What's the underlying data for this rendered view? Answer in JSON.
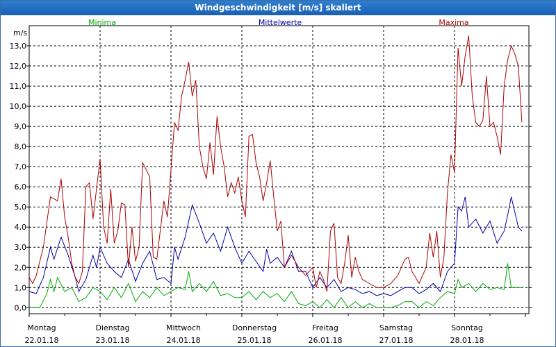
{
  "window": {
    "title": "Windgeschwindigkeit [m/s] skaliert"
  },
  "chart_data": {
    "type": "line",
    "title": "Windgeschwindigkeit [m/s] skaliert",
    "ylabel": "m/s",
    "ylim": [
      -0.3,
      14.0
    ],
    "yticks": [
      "0,0",
      "1,0",
      "2,0",
      "3,0",
      "4,0",
      "5,0",
      "6,0",
      "7,0",
      "8,0",
      "9,0",
      "10,0",
      "11,0",
      "12,0",
      "13,0"
    ],
    "day_names": [
      "Montag",
      "Dienstag",
      "Mittwoch",
      "Donnerstag",
      "Freitag",
      "Samstag",
      "Sonntag"
    ],
    "day_dates": [
      "22.01.18",
      "23.01.18",
      "24.01.18",
      "25.01.18",
      "26.01.18",
      "27.01.18",
      "28.01.18"
    ],
    "x_range_days": [
      0,
      7
    ],
    "grid": true,
    "series": [
      {
        "name": "Minima",
        "color": "#00aa00",
        "points": [
          [
            0,
            0
          ],
          [
            0.15,
            0
          ],
          [
            0.25,
            0.7
          ],
          [
            0.3,
            1.4
          ],
          [
            0.35,
            0.8
          ],
          [
            0.4,
            1.5
          ],
          [
            0.5,
            0.8
          ],
          [
            0.6,
            1.0
          ],
          [
            0.7,
            0.3
          ],
          [
            0.8,
            0.5
          ],
          [
            0.9,
            1.0
          ],
          [
            1.0,
            0.8
          ],
          [
            1.1,
            0.4
          ],
          [
            1.2,
            1.0
          ],
          [
            1.3,
            0.5
          ],
          [
            1.4,
            1.2
          ],
          [
            1.5,
            0.3
          ],
          [
            1.6,
            0.8
          ],
          [
            1.7,
            0.5
          ],
          [
            1.8,
            1.0
          ],
          [
            1.9,
            0.6
          ],
          [
            2.0,
            0.8
          ],
          [
            2.1,
            1.0
          ],
          [
            2.2,
            0.9
          ],
          [
            2.25,
            1.8
          ],
          [
            2.3,
            0.8
          ],
          [
            2.4,
            1.2
          ],
          [
            2.5,
            0.8
          ],
          [
            2.6,
            1.3
          ],
          [
            2.7,
            0.6
          ],
          [
            2.8,
            0.7
          ],
          [
            2.9,
            0.5
          ],
          [
            3.0,
            0.5
          ],
          [
            3.1,
            0.8
          ],
          [
            3.2,
            0.4
          ],
          [
            3.3,
            0.8
          ],
          [
            3.4,
            0.5
          ],
          [
            3.5,
            0.7
          ],
          [
            3.6,
            0.3
          ],
          [
            3.7,
            0.8
          ],
          [
            3.8,
            0.2
          ],
          [
            3.9,
            0.1
          ],
          [
            4.0,
            0.3
          ],
          [
            4.1,
            0
          ],
          [
            4.2,
            0.4
          ],
          [
            4.3,
            0
          ],
          [
            4.4,
            0.5
          ],
          [
            4.5,
            0
          ],
          [
            4.6,
            0.3
          ],
          [
            4.7,
            0
          ],
          [
            4.8,
            0.2
          ],
          [
            4.9,
            0
          ],
          [
            5.0,
            0
          ],
          [
            5.1,
            0
          ],
          [
            5.2,
            0.1
          ],
          [
            5.3,
            0.3
          ],
          [
            5.4,
            0.3
          ],
          [
            5.5,
            0
          ],
          [
            5.6,
            0.3
          ],
          [
            5.7,
            0.1
          ],
          [
            5.8,
            0.5
          ],
          [
            5.9,
            0.8
          ],
          [
            6.0,
            0.7
          ],
          [
            6.05,
            1.4
          ],
          [
            6.1,
            1.0
          ],
          [
            6.2,
            1.2
          ],
          [
            6.3,
            0.8
          ],
          [
            6.4,
            1.2
          ],
          [
            6.5,
            0.9
          ],
          [
            6.6,
            1.0
          ],
          [
            6.7,
            0.9
          ],
          [
            6.75,
            2.2
          ],
          [
            6.8,
            1.0
          ],
          [
            6.9,
            1.0
          ],
          [
            6.95,
            1.0
          ]
        ]
      },
      {
        "name": "Mittelwerte",
        "color": "#0000aa",
        "points": [
          [
            0,
            0.8
          ],
          [
            0.1,
            0.7
          ],
          [
            0.2,
            1.5
          ],
          [
            0.3,
            3.0
          ],
          [
            0.35,
            2.4
          ],
          [
            0.45,
            3.5
          ],
          [
            0.55,
            2.6
          ],
          [
            0.65,
            1.5
          ],
          [
            0.7,
            0.8
          ],
          [
            0.8,
            1.4
          ],
          [
            0.9,
            2.6
          ],
          [
            0.95,
            2.0
          ],
          [
            1.0,
            3.0
          ],
          [
            1.1,
            2.2
          ],
          [
            1.2,
            1.8
          ],
          [
            1.3,
            1.5
          ],
          [
            1.4,
            2.4
          ],
          [
            1.5,
            1.3
          ],
          [
            1.6,
            2.2
          ],
          [
            1.7,
            2.8
          ],
          [
            1.8,
            1.4
          ],
          [
            1.9,
            1.5
          ],
          [
            2.0,
            1.2
          ],
          [
            2.05,
            3.0
          ],
          [
            2.1,
            2.4
          ],
          [
            2.2,
            3.5
          ],
          [
            2.3,
            5.1
          ],
          [
            2.4,
            4.2
          ],
          [
            2.5,
            3.2
          ],
          [
            2.6,
            3.7
          ],
          [
            2.7,
            2.8
          ],
          [
            2.8,
            4.0
          ],
          [
            2.9,
            3.0
          ],
          [
            3.0,
            2.2
          ],
          [
            3.1,
            2.8
          ],
          [
            3.2,
            2.3
          ],
          [
            3.3,
            1.8
          ],
          [
            3.35,
            2.9
          ],
          [
            3.4,
            2.2
          ],
          [
            3.5,
            2.5
          ],
          [
            3.6,
            2.0
          ],
          [
            3.7,
            2.8
          ],
          [
            3.8,
            1.8
          ],
          [
            3.9,
            1.8
          ],
          [
            4.0,
            1.0
          ],
          [
            4.1,
            1.5
          ],
          [
            4.2,
            1.0
          ],
          [
            4.3,
            1.4
          ],
          [
            4.4,
            0.8
          ],
          [
            4.5,
            1.0
          ],
          [
            4.6,
            0.9
          ],
          [
            4.7,
            0.7
          ],
          [
            4.8,
            0.8
          ],
          [
            4.9,
            0.6
          ],
          [
            5.0,
            0.7
          ],
          [
            5.1,
            0.6
          ],
          [
            5.2,
            0.8
          ],
          [
            5.3,
            1.0
          ],
          [
            5.4,
            1.0
          ],
          [
            5.5,
            0.7
          ],
          [
            5.6,
            0.9
          ],
          [
            5.7,
            1.2
          ],
          [
            5.8,
            0.8
          ],
          [
            5.9,
            1.8
          ],
          [
            6.0,
            2.2
          ],
          [
            6.05,
            5.0
          ],
          [
            6.1,
            4.8
          ],
          [
            6.15,
            5.5
          ],
          [
            6.2,
            4.0
          ],
          [
            6.3,
            4.4
          ],
          [
            6.4,
            3.7
          ],
          [
            6.5,
            4.3
          ],
          [
            6.6,
            3.2
          ],
          [
            6.7,
            3.8
          ],
          [
            6.75,
            4.6
          ],
          [
            6.8,
            5.5
          ],
          [
            6.9,
            4.0
          ],
          [
            6.95,
            3.8
          ]
        ]
      },
      {
        "name": "Maxima",
        "color": "#aa0000",
        "points": [
          [
            0,
            1.5
          ],
          [
            0.05,
            1.2
          ],
          [
            0.1,
            1.6
          ],
          [
            0.2,
            3.0
          ],
          [
            0.3,
            5.5
          ],
          [
            0.35,
            5.4
          ],
          [
            0.4,
            5.3
          ],
          [
            0.45,
            6.4
          ],
          [
            0.5,
            4.5
          ],
          [
            0.55,
            3.5
          ],
          [
            0.6,
            2.2
          ],
          [
            0.65,
            1.5
          ],
          [
            0.7,
            1.2
          ],
          [
            0.75,
            1.8
          ],
          [
            0.8,
            6.0
          ],
          [
            0.85,
            6.2
          ],
          [
            0.9,
            4.4
          ],
          [
            1.0,
            7.4
          ],
          [
            1.05,
            4.0
          ],
          [
            1.1,
            3.2
          ],
          [
            1.15,
            5.9
          ],
          [
            1.2,
            3.2
          ],
          [
            1.25,
            3.8
          ],
          [
            1.3,
            5.2
          ],
          [
            1.35,
            5.1
          ],
          [
            1.4,
            2.0
          ],
          [
            1.45,
            4.0
          ],
          [
            1.5,
            2.3
          ],
          [
            1.55,
            3.0
          ],
          [
            1.6,
            7.2
          ],
          [
            1.7,
            6.5
          ],
          [
            1.75,
            2.5
          ],
          [
            1.8,
            2.4
          ],
          [
            1.9,
            5.3
          ],
          [
            1.95,
            4.5
          ],
          [
            2.05,
            9.2
          ],
          [
            2.1,
            8.8
          ],
          [
            2.15,
            10.5
          ],
          [
            2.2,
            11.3
          ],
          [
            2.25,
            12.2
          ],
          [
            2.3,
            10.5
          ],
          [
            2.35,
            11.3
          ],
          [
            2.4,
            8.0
          ],
          [
            2.45,
            7.0
          ],
          [
            2.5,
            6.4
          ],
          [
            2.55,
            8.2
          ],
          [
            2.6,
            6.6
          ],
          [
            2.65,
            9.5
          ],
          [
            2.7,
            8.0
          ],
          [
            2.75,
            7.0
          ],
          [
            2.8,
            5.5
          ],
          [
            2.85,
            6.2
          ],
          [
            2.9,
            5.7
          ],
          [
            2.95,
            6.5
          ],
          [
            3.0,
            5.3
          ],
          [
            3.05,
            4.5
          ],
          [
            3.1,
            8.5
          ],
          [
            3.15,
            8.6
          ],
          [
            3.2,
            7.2
          ],
          [
            3.25,
            6.5
          ],
          [
            3.3,
            5.3
          ],
          [
            3.35,
            6.2
          ],
          [
            3.4,
            7.3
          ],
          [
            3.45,
            5.5
          ],
          [
            3.5,
            3.8
          ],
          [
            3.55,
            4.3
          ],
          [
            3.6,
            2.0
          ],
          [
            3.7,
            2.6
          ],
          [
            3.8,
            2.0
          ],
          [
            3.9,
            1.6
          ],
          [
            4.0,
            2.0
          ],
          [
            4.05,
            1.0
          ],
          [
            4.1,
            1.8
          ],
          [
            4.15,
            1.4
          ],
          [
            4.2,
            0.8
          ],
          [
            4.25,
            3.8
          ],
          [
            4.3,
            4.2
          ],
          [
            4.35,
            1.5
          ],
          [
            4.4,
            1.2
          ],
          [
            4.45,
            2.2
          ],
          [
            4.5,
            3.6
          ],
          [
            4.55,
            1.5
          ],
          [
            4.6,
            2.5
          ],
          [
            4.65,
            1.8
          ],
          [
            4.7,
            1.4
          ],
          [
            4.8,
            1.2
          ],
          [
            4.9,
            1.0
          ],
          [
            5.0,
            1.0
          ],
          [
            5.1,
            1.2
          ],
          [
            5.2,
            1.6
          ],
          [
            5.3,
            2.4
          ],
          [
            5.35,
            2.5
          ],
          [
            5.4,
            1.8
          ],
          [
            5.5,
            1.2
          ],
          [
            5.6,
            2.0
          ],
          [
            5.65,
            3.7
          ],
          [
            5.7,
            2.5
          ],
          [
            5.75,
            3.8
          ],
          [
            5.8,
            1.5
          ],
          [
            5.85,
            2.5
          ],
          [
            5.9,
            5.7
          ],
          [
            5.95,
            7.6
          ],
          [
            6.0,
            6.7
          ],
          [
            6.05,
            12.9
          ],
          [
            6.1,
            11.0
          ],
          [
            6.15,
            12.5
          ],
          [
            6.2,
            13.5
          ],
          [
            6.25,
            10.5
          ],
          [
            6.3,
            9.2
          ],
          [
            6.35,
            9.0
          ],
          [
            6.4,
            9.3
          ],
          [
            6.45,
            11.5
          ],
          [
            6.5,
            9.0
          ],
          [
            6.55,
            9.2
          ],
          [
            6.6,
            8.5
          ],
          [
            6.65,
            7.6
          ],
          [
            6.7,
            11.0
          ],
          [
            6.75,
            12.3
          ],
          [
            6.8,
            13.0
          ],
          [
            6.85,
            12.6
          ],
          [
            6.9,
            12.0
          ],
          [
            6.95,
            9.2
          ]
        ]
      }
    ]
  }
}
